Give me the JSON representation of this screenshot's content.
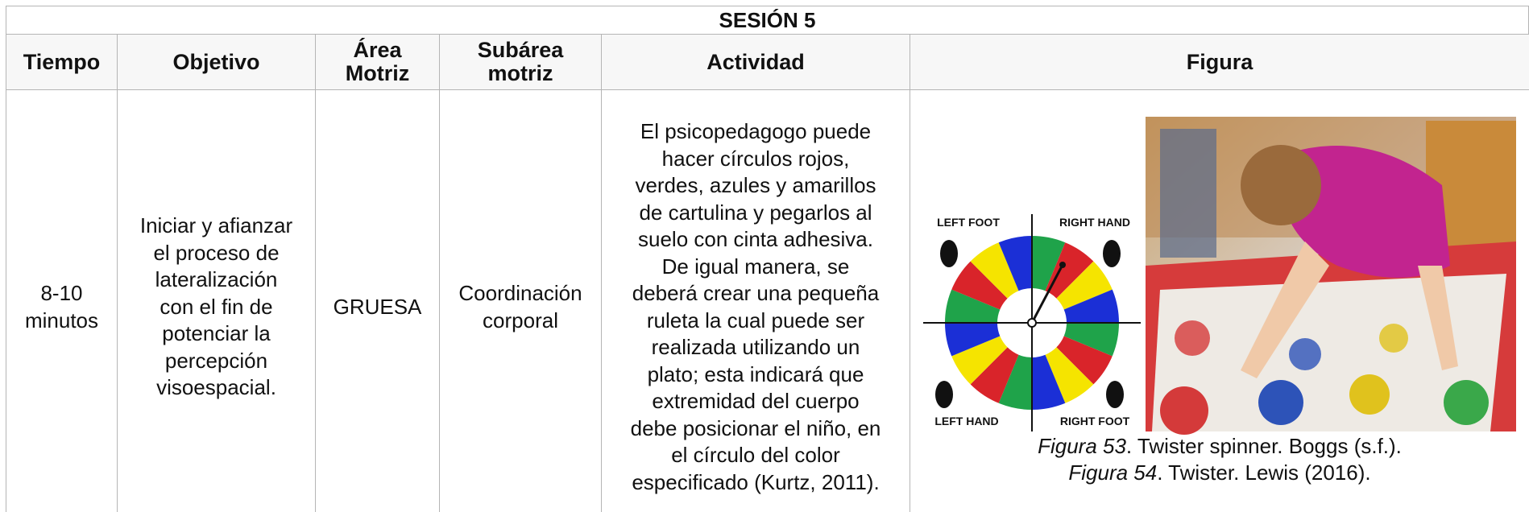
{
  "title": "SESIÓN 5",
  "table": {
    "headers": [
      [
        "Tiempo"
      ],
      [
        "Objetivo"
      ],
      [
        "Área",
        "Motriz"
      ],
      [
        "Subárea",
        "motriz"
      ],
      [
        "Actividad"
      ],
      [
        "Figura"
      ]
    ],
    "rows": [
      [
        [
          "8-10",
          "minutos"
        ],
        [
          "Iniciar y afianzar",
          "el proceso de",
          "lateralización",
          "con el fin de",
          "potenciar la",
          "percepción",
          "visoespacial."
        ],
        [
          "GRUESA"
        ],
        [
          "Coordinación",
          "corporal"
        ],
        [
          "El psicopedagogo puede",
          "hacer círculos rojos,",
          "verdes, azules y amarillos",
          "de cartulina y pegarlos al",
          "suelo con cinta adhesiva.",
          "De igual manera, se",
          "deberá crear una pequeña",
          "ruleta la cual puede ser",
          "realizada utilizando un",
          "plato; esta indicará que",
          "extremidad del cuerpo",
          "debe posicionar el niño, en",
          "el círculo del color",
          "especificado (Kurtz, 2011)."
        ]
      ]
    ]
  },
  "figure": {
    "spinner_labels": [
      "LEFT FOOT",
      "RIGHT HAND",
      "LEFT HAND",
      "RIGHT FOOT"
    ],
    "captions": [
      {
        "label": "Figura 53",
        "text": ". Twister spinner. Boggs (s.f.)."
      },
      {
        "label": "Figura 54",
        "text": ". Twister. Lewis (2016)."
      }
    ]
  }
}
